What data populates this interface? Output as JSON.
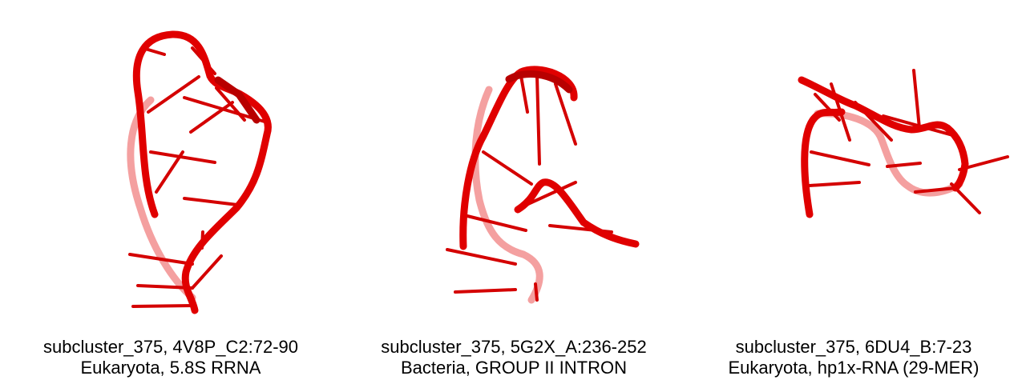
{
  "colors": {
    "strand": "#e00000",
    "strand_dark": "#9a0000",
    "strand_faded": "#f08080"
  },
  "panels": [
    {
      "title": "subcluster_375, 4V8P_C2:72-90",
      "subtitle": "Eukaryota, 5.8S RRNA"
    },
    {
      "title": "subcluster_375, 5G2X_A:236-252",
      "subtitle": "Bacteria, GROUP II INTRON"
    },
    {
      "title": "subcluster_375, 6DU4_B:7-23",
      "subtitle": "Eukaryota, hp1x-RNA (29-MER)"
    }
  ]
}
